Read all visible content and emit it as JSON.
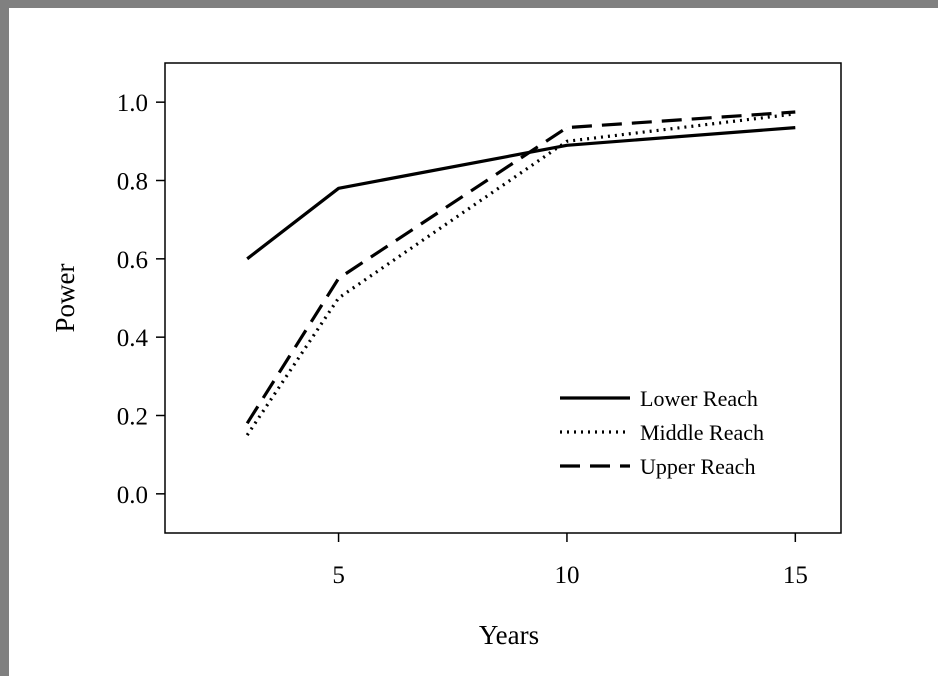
{
  "chart_data": {
    "type": "line",
    "title": "",
    "xlabel": "Years",
    "ylabel": "Power",
    "xlim": [
      1.2,
      16.0
    ],
    "ylim": [
      -0.1,
      1.1
    ],
    "xticks": [
      5,
      10,
      15
    ],
    "xtick_labels": [
      "5",
      "10",
      "15"
    ],
    "yticks": [
      0.0,
      0.2,
      0.4,
      0.6,
      0.8,
      1.0
    ],
    "ytick_labels": [
      "0.0",
      "0.2",
      "0.4",
      "0.6",
      "0.8",
      "1.0"
    ],
    "grid": false,
    "legend_position": "lower-right",
    "series": [
      {
        "name": "Lower Reach",
        "style": "solid",
        "color": "#000000",
        "x": [
          3,
          5,
          10,
          15
        ],
        "y": [
          0.6,
          0.78,
          0.89,
          0.935
        ]
      },
      {
        "name": "Middle Reach",
        "style": "dotted",
        "color": "#000000",
        "x": [
          3,
          5,
          10,
          15
        ],
        "y": [
          0.15,
          0.5,
          0.9,
          0.97
        ]
      },
      {
        "name": "Upper Reach",
        "style": "dashed",
        "color": "#000000",
        "x": [
          3,
          5,
          10,
          15
        ],
        "y": [
          0.18,
          0.55,
          0.935,
          0.975
        ]
      }
    ]
  }
}
